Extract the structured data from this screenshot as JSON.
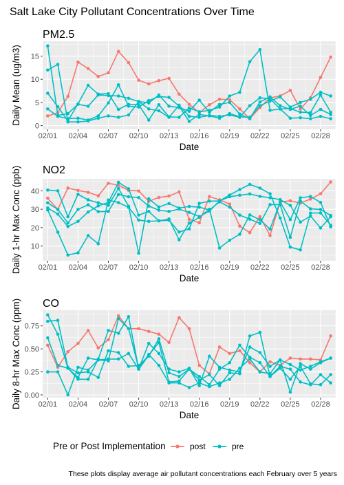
{
  "title": "Salt Lake City Pollutant Concentrations Over Time",
  "caption": "These plots display average air pollutant concentrations each February over 5 years",
  "colors": {
    "post": "#F8766D",
    "pre": "#00BFC4",
    "panel": "#EBEBEB",
    "grid": "#FFFFFF",
    "axis_text": "#4D4D4D"
  },
  "legend": {
    "title": "Pre or Post Implementation",
    "placement": "bottom",
    "entries": [
      {
        "key": "post",
        "label": "post"
      },
      {
        "key": "pre",
        "label": "pre"
      }
    ]
  },
  "chart_data": [
    {
      "type": "line",
      "title": "PM2.5",
      "xlabel": "Date",
      "ylabel": "Daily Mean (ug/m3)",
      "xlim": [
        0.5,
        29.5
      ],
      "ylim": [
        -0.8,
        18.2
      ],
      "x_ticks": [
        1,
        4,
        7,
        10,
        13,
        16,
        19,
        22,
        25,
        28
      ],
      "x_tick_labels": [
        "02/01",
        "02/04",
        "02/07",
        "02/10",
        "02/13",
        "02/16",
        "02/19",
        "02/22",
        "02/25",
        "02/28"
      ],
      "y_ticks": [
        0,
        5,
        10,
        15
      ],
      "series": [
        {
          "group": "post",
          "values": [
            2.1,
            2.8,
            6.3,
            13.7,
            12.3,
            10.6,
            11.4,
            16.0,
            13.6,
            9.8,
            9.0,
            9.7,
            10.2,
            6.8,
            4.6,
            2.8,
            4.5,
            5.7,
            5.6,
            3.6,
            1.5,
            3.9,
            6.0,
            6.4,
            7.6,
            3.6,
            6.0,
            10.4,
            14.8
          ]
        },
        {
          "group": "pre",
          "values": [
            17.2,
            2.2,
            2.6,
            4.6,
            4.2,
            6.6,
            6.5,
            6.4,
            5.9,
            5.2,
            4.9,
            6.6,
            4.2,
            3.9,
            3.1,
            5.5,
            2.9,
            4.6,
            5.0,
            2.5,
            1.5,
            5.1,
            6.2,
            4.3,
            3.5,
            4.2,
            2.2,
            3.5,
            2.4
          ]
        },
        {
          "group": "pre",
          "values": [
            12.0,
            13.2,
            0.8,
            0.8,
            1.0,
            1.6,
            2.1,
            1.8,
            2.3,
            5.2,
            3.6,
            3.2,
            1.8,
            4.4,
            2.0,
            1.8,
            2.2,
            2.0,
            2.3,
            1.8,
            4.3,
            6.0,
            5.8,
            3.6,
            1.6,
            1.7,
            1.5,
            2.0,
            1.5
          ]
        },
        {
          "group": "pre",
          "values": [
            7.0,
            4.1,
            1.0,
            4.7,
            8.7,
            6.8,
            6.9,
            3.5,
            4.6,
            4.5,
            1.2,
            4.5,
            1.9,
            1.8,
            3.8,
            3.0,
            3.3,
            4.0,
            6.4,
            7.2,
            13.8,
            16.4,
            3.3,
            3.6,
            3.7,
            2.9,
            2.8,
            6.6,
            2.9
          ]
        },
        {
          "group": "pre",
          "values": [
            3.6,
            2.0,
            1.5,
            1.6,
            1.2,
            2.1,
            4.9,
            8.8,
            4.2,
            4.0,
            5.4,
            6.3,
            6.1,
            4.2,
            0.9,
            2.4,
            2.1,
            1.6,
            2.6,
            1.9,
            1.8,
            4.3,
            5.3,
            6.2,
            4.0,
            5.0,
            5.7,
            7.2,
            6.4
          ]
        }
      ]
    },
    {
      "type": "line",
      "title": "NO2",
      "xlabel": "Date",
      "ylabel": "Daily 1-hr Max Conc (ppb)",
      "xlim": [
        0.5,
        29.5
      ],
      "ylim": [
        2.0,
        46.5
      ],
      "x_ticks": [
        1,
        4,
        7,
        10,
        13,
        16,
        19,
        22,
        25,
        28
      ],
      "x_tick_labels": [
        "02/01",
        "02/04",
        "02/07",
        "02/10",
        "02/13",
        "02/16",
        "02/19",
        "02/22",
        "02/25",
        "02/28"
      ],
      "y_ticks": [
        10,
        20,
        30,
        40
      ],
      "series": [
        {
          "group": "post",
          "values": [
            36.0,
            29.9,
            41.5,
            40.2,
            39.2,
            37.3,
            44.1,
            43.0,
            40.3,
            39.9,
            34.3,
            36.4,
            37.2,
            39.4,
            24.5,
            22.6,
            36.9,
            35.1,
            32.8,
            20.8,
            17.3,
            26.0,
            15.7,
            33.9,
            34.6,
            33.3,
            35.5,
            38.4,
            44.8
          ]
        },
        {
          "group": "pre",
          "values": [
            40.4,
            40.0,
            25.9,
            38.1,
            35.1,
            33.5,
            32.1,
            41.3,
            31.6,
            6.1,
            35.7,
            31.2,
            33.1,
            30.6,
            31.5,
            31.1,
            29.6,
            34.0,
            31.1,
            26.8,
            24.6,
            22.3,
            32.5,
            32.5,
            14.7,
            34.5,
            30.2,
            29.9,
            26.6
          ]
        },
        {
          "group": "pre",
          "values": [
            29.6,
            17.5,
            5.1,
            6.3,
            15.7,
            11.2,
            35.0,
            33.6,
            31.0,
            24.1,
            23.4,
            23.7,
            24.0,
            17.6,
            19.3,
            33.2,
            34.4,
            34.5,
            37.7,
            40.7,
            43.5,
            41.5,
            38.4,
            25.2,
            9.4,
            7.9,
            27.9,
            28.0,
            21.3
          ]
        },
        {
          "group": "pre",
          "values": [
            33.5,
            29.9,
            22.5,
            29.9,
            32.4,
            28.7,
            28.8,
            38.0,
            36.8,
            36.3,
            31.7,
            29.5,
            28.8,
            30.1,
            28.3,
            26.0,
            29.0,
            34.5,
            36.8,
            37.6,
            38.3,
            37.0,
            36.2,
            35.2,
            32.1,
            23.0,
            26.3,
            19.8,
            25.9
          ]
        },
        {
          "group": "pre",
          "values": [
            30.7,
            27.4,
            20.6,
            23.4,
            28.5,
            31.8,
            33.7,
            44.6,
            41.1,
            26.8,
            28.8,
            23.7,
            24.7,
            13.4,
            22.5,
            25.6,
            30.0,
            8.9,
            13.1,
            16.4,
            26.9,
            24.3,
            19.2,
            33.9,
            24.4,
            36.2,
            36.9,
            33.7,
            20.4
          ]
        }
      ]
    },
    {
      "type": "line",
      "title": "CO",
      "xlabel": "Date",
      "ylabel": "Daily 8-hr Max Conc (ppm)",
      "xlim": [
        0.5,
        29.5
      ],
      "ylim": [
        -0.03,
        0.92
      ],
      "x_ticks": [
        1,
        4,
        7,
        10,
        13,
        16,
        19,
        22,
        25,
        28
      ],
      "x_tick_labels": [
        "02/01",
        "02/04",
        "02/07",
        "02/10",
        "02/13",
        "02/16",
        "02/19",
        "02/22",
        "02/25",
        "02/28"
      ],
      "y_ticks": [
        0.0,
        0.25,
        0.5,
        0.75
      ],
      "y_tick_labels": [
        "0.00",
        "0.25",
        "0.50",
        "0.75"
      ],
      "series": [
        {
          "group": "post",
          "values": [
            0.54,
            0.3,
            0.47,
            0.56,
            0.7,
            0.51,
            0.6,
            0.86,
            0.72,
            0.72,
            0.69,
            0.66,
            0.57,
            0.84,
            0.72,
            0.32,
            0.23,
            0.52,
            0.45,
            0.48,
            0.35,
            0.25,
            0.36,
            0.32,
            0.4,
            0.39,
            0.39,
            0.38,
            0.64
          ]
        },
        {
          "group": "pre",
          "values": [
            0.25,
            0.25,
            0.0,
            0.3,
            0.27,
            0.38,
            0.37,
            0.83,
            0.72,
            0.29,
            0.44,
            0.32,
            0.13,
            0.13,
            0.08,
            0.13,
            0.09,
            0.13,
            0.17,
            0.29,
            0.39,
            0.25,
            0.23,
            0.38,
            0.03,
            0.34,
            0.28,
            0.35,
            0.4
          ]
        },
        {
          "group": "pre",
          "values": [
            0.8,
            0.81,
            0.3,
            0.24,
            0.25,
            0.19,
            0.48,
            0.46,
            0.31,
            0.32,
            0.42,
            0.61,
            0.24,
            0.2,
            0.28,
            0.16,
            0.22,
            0.1,
            0.24,
            0.23,
            0.64,
            0.68,
            0.2,
            0.31,
            0.28,
            0.14,
            0.11,
            0.22,
            0.13
          ]
        },
        {
          "group": "pre",
          "values": [
            0.87,
            0.66,
            0.29,
            0.19,
            0.4,
            0.38,
            0.39,
            0.39,
            0.45,
            0.28,
            0.43,
            0.57,
            0.14,
            0.15,
            0.28,
            0.2,
            0.11,
            0.28,
            0.35,
            0.54,
            0.41,
            0.35,
            0.2,
            0.29,
            0.17,
            0.31,
            0.12,
            0.11,
            0.22
          ]
        },
        {
          "group": "pre",
          "values": [
            0.62,
            0.32,
            0.29,
            0.17,
            0.17,
            0.39,
            0.7,
            0.67,
            0.85,
            0.28,
            0.56,
            0.45,
            0.28,
            0.25,
            0.29,
            0.1,
            0.42,
            0.3,
            0.27,
            0.25,
            0.52,
            0.46,
            0.31,
            0.38,
            0.33,
            0.27,
            0.31,
            0.36,
            0.4
          ]
        }
      ]
    }
  ]
}
